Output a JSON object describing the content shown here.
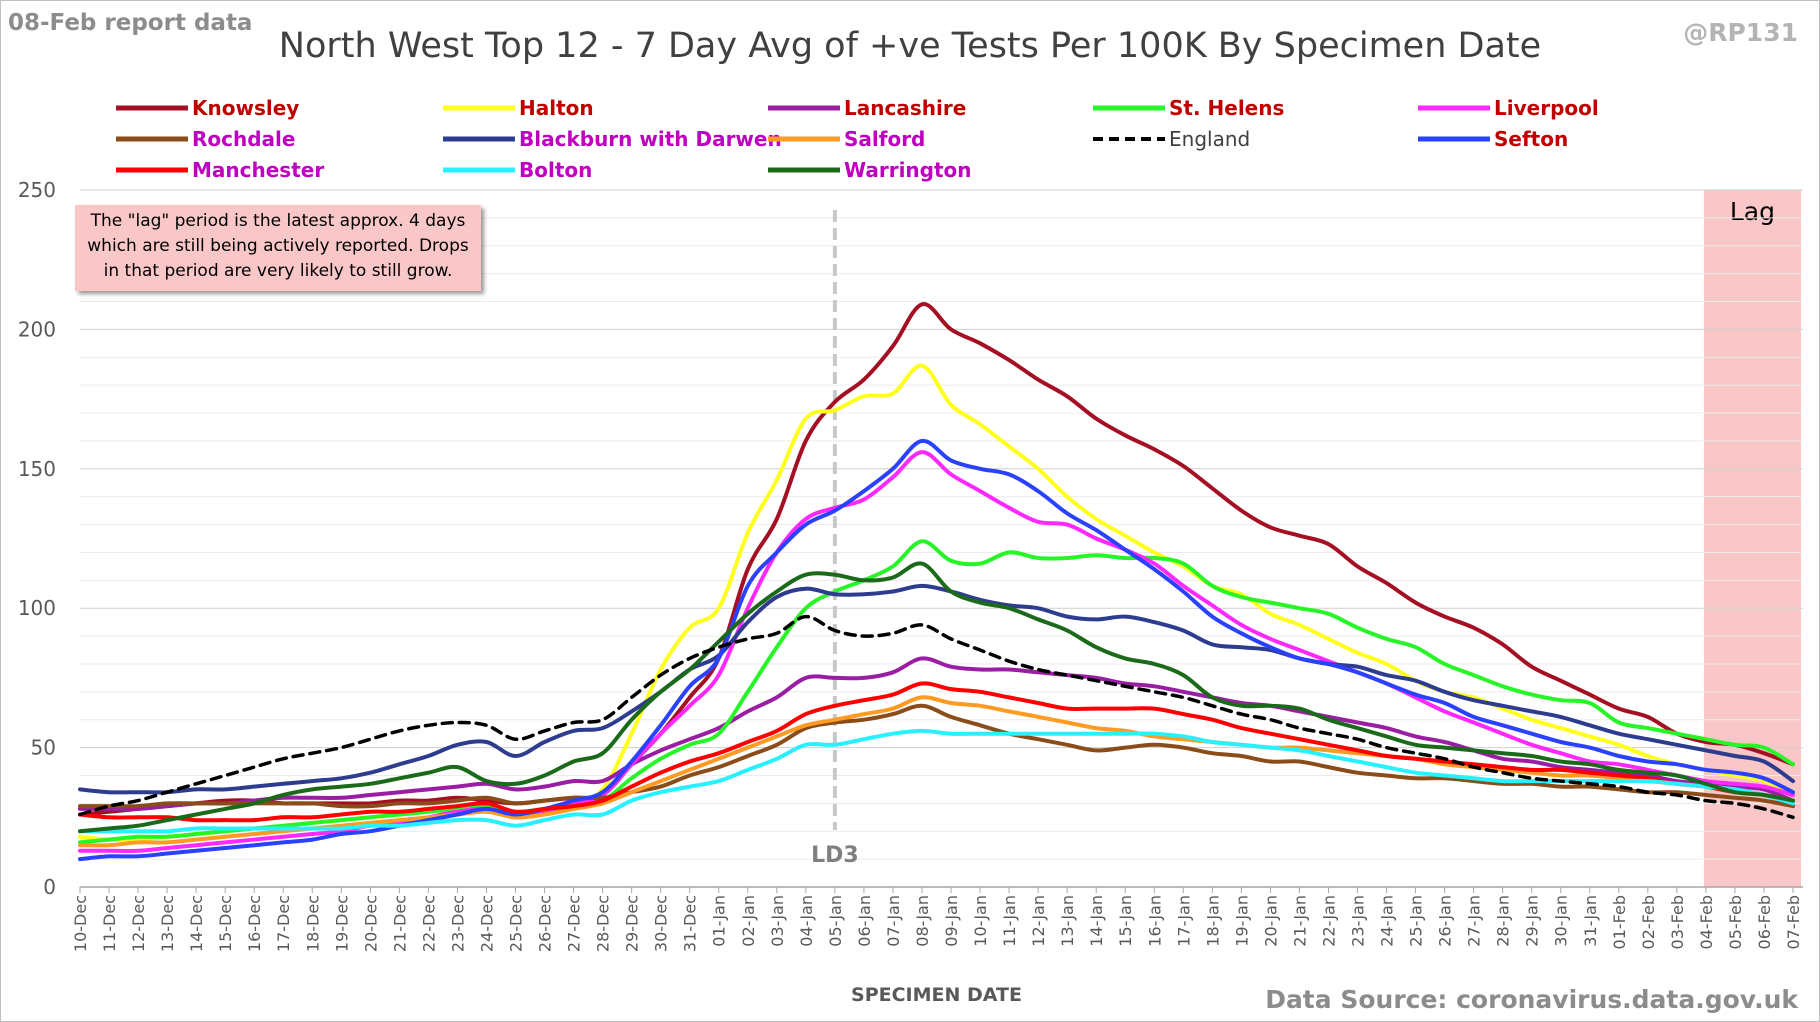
{
  "header": {
    "report_date": "08-Feb report data",
    "handle": "@RP131",
    "source": "Data Source: coronavirus.data.gov.uk"
  },
  "note": {
    "line1": "The \"lag\" period is the latest approx. 4 days",
    "line2": "which are still being actively reported.  Drops",
    "line3": "in that period are very likely to still grow."
  },
  "chart_data": {
    "type": "line",
    "title": "North West Top 12 - 7 Day Avg of +ve Tests Per 100K By Specimen Date",
    "xlabel": "SPECIMEN DATE",
    "ylabel": "",
    "ylim": [
      0,
      250
    ],
    "yticks": [
      0,
      50,
      100,
      150,
      200,
      250
    ],
    "grid": "horizontal",
    "legend": "top",
    "x": [
      "10-Dec",
      "11-Dec",
      "12-Dec",
      "13-Dec",
      "14-Dec",
      "15-Dec",
      "16-Dec",
      "17-Dec",
      "18-Dec",
      "19-Dec",
      "20-Dec",
      "21-Dec",
      "22-Dec",
      "23-Dec",
      "24-Dec",
      "25-Dec",
      "26-Dec",
      "27-Dec",
      "28-Dec",
      "29-Dec",
      "30-Dec",
      "31-Dec",
      "01-Jan",
      "02-Jan",
      "03-Jan",
      "04-Jan",
      "05-Jan",
      "06-Jan",
      "07-Jan",
      "08-Jan",
      "09-Jan",
      "10-Jan",
      "11-Jan",
      "12-Jan",
      "13-Jan",
      "14-Jan",
      "15-Jan",
      "16-Jan",
      "17-Jan",
      "18-Jan",
      "19-Jan",
      "20-Jan",
      "21-Jan",
      "22-Jan",
      "23-Jan",
      "24-Jan",
      "25-Jan",
      "26-Jan",
      "27-Jan",
      "28-Jan",
      "29-Jan",
      "30-Jan",
      "31-Jan",
      "01-Feb",
      "02-Feb",
      "03-Feb",
      "04-Feb",
      "05-Feb",
      "06-Feb",
      "07-Feb"
    ],
    "annotations": [
      {
        "text": "LD3",
        "x": "05-Jan"
      },
      {
        "text": "Lag",
        "x_from": "04-Feb",
        "x_to": "07-Feb"
      }
    ],
    "series": [
      {
        "name": "Knowsley",
        "color": "#a50f23",
        "label_color": "#c00000",
        "dashed": false,
        "values": [
          26,
          27,
          28,
          29,
          30,
          31,
          31,
          30,
          30,
          30,
          30,
          31,
          31,
          32,
          31,
          30,
          31,
          32,
          33,
          44,
          55,
          68,
          82,
          114,
          132,
          160,
          174,
          182,
          194,
          209,
          200,
          195,
          189,
          182,
          176,
          168,
          162,
          157,
          151,
          143,
          135,
          129,
          126,
          123,
          115,
          109,
          102,
          97,
          93,
          87,
          79,
          74,
          69,
          64,
          61,
          55,
          52,
          51,
          48,
          44
        ]
      },
      {
        "name": "Halton",
        "color": "#ffff1e",
        "label_color": "#c00000",
        "dashed": false,
        "values": [
          18,
          17,
          17,
          18,
          19,
          20,
          21,
          22,
          23,
          24,
          25,
          26,
          27,
          28,
          28,
          25,
          27,
          30,
          35,
          55,
          78,
          93,
          100,
          127,
          146,
          168,
          171,
          176,
          177,
          187,
          173,
          166,
          158,
          150,
          140,
          132,
          126,
          120,
          115,
          108,
          105,
          98,
          94,
          89,
          84,
          80,
          74,
          70,
          68,
          64,
          60,
          57,
          54,
          51,
          47,
          44,
          42,
          40,
          38,
          33
        ]
      },
      {
        "name": "Lancashire",
        "color": "#9a1ea3",
        "label_color": "#c00000",
        "dashed": false,
        "values": [
          28,
          28,
          28,
          29,
          30,
          30,
          31,
          32,
          32,
          32,
          33,
          34,
          35,
          36,
          37,
          35,
          36,
          38,
          38,
          44,
          49,
          53,
          57,
          63,
          68,
          75,
          75,
          75,
          77,
          82,
          79,
          78,
          78,
          77,
          76,
          75,
          73,
          72,
          70,
          68,
          66,
          65,
          63,
          61,
          59,
          57,
          54,
          52,
          49,
          46,
          45,
          43,
          42,
          41,
          40,
          38,
          37,
          36,
          35,
          31
        ]
      },
      {
        "name": "St. Helens",
        "color": "#28f528",
        "label_color": "#c00000",
        "dashed": false,
        "values": [
          16,
          17,
          18,
          18,
          19,
          20,
          21,
          22,
          23,
          24,
          25,
          26,
          27,
          28,
          29,
          27,
          28,
          30,
          31,
          39,
          46,
          51,
          55,
          70,
          86,
          100,
          106,
          110,
          115,
          124,
          117,
          116,
          120,
          118,
          118,
          119,
          118,
          118,
          116,
          108,
          104,
          102,
          100,
          98,
          93,
          89,
          86,
          80,
          76,
          72,
          69,
          67,
          66,
          59,
          57,
          55,
          53,
          51,
          50,
          44
        ]
      },
      {
        "name": "Liverpool",
        "color": "#ff28ff",
        "label_color": "#c00000",
        "dashed": false,
        "values": [
          13,
          13,
          13,
          14,
          15,
          16,
          17,
          18,
          19,
          20,
          22,
          23,
          25,
          27,
          28,
          25,
          27,
          30,
          33,
          44,
          55,
          65,
          76,
          100,
          120,
          132,
          136,
          139,
          147,
          156,
          148,
          142,
          136,
          131,
          130,
          125,
          121,
          116,
          108,
          101,
          94,
          89,
          85,
          81,
          77,
          73,
          68,
          63,
          59,
          55,
          51,
          48,
          45,
          44,
          42,
          40,
          38,
          37,
          36,
          33
        ]
      },
      {
        "name": "Rochdale",
        "color": "#8a4d1a",
        "label_color": "#c000c0",
        "dashed": false,
        "values": [
          29,
          29,
          29,
          30,
          30,
          30,
          30,
          30,
          30,
          29,
          29,
          30,
          30,
          31,
          32,
          30,
          31,
          32,
          32,
          34,
          36,
          40,
          43,
          47,
          51,
          57,
          59,
          60,
          62,
          65,
          61,
          58,
          55,
          53,
          51,
          49,
          50,
          51,
          50,
          48,
          47,
          45,
          45,
          43,
          41,
          40,
          39,
          39,
          38,
          37,
          37,
          36,
          36,
          35,
          34,
          34,
          33,
          32,
          31,
          29
        ]
      },
      {
        "name": "Blackburn with Darwen",
        "color": "#2e3c90",
        "label_color": "#c000c0",
        "dashed": false,
        "values": [
          35,
          34,
          34,
          34,
          35,
          35,
          36,
          37,
          38,
          39,
          41,
          44,
          47,
          51,
          52,
          47,
          52,
          56,
          57,
          63,
          70,
          78,
          83,
          95,
          104,
          107,
          105,
          105,
          106,
          108,
          106,
          103,
          101,
          100,
          97,
          96,
          97,
          95,
          92,
          87,
          86,
          85,
          82,
          80,
          79,
          76,
          74,
          70,
          67,
          65,
          63,
          61,
          58,
          55,
          53,
          51,
          49,
          47,
          45,
          38
        ]
      },
      {
        "name": "Salford",
        "color": "#ff9a22",
        "label_color": "#c000c0",
        "dashed": false,
        "values": [
          15,
          15,
          16,
          16,
          17,
          18,
          19,
          20,
          21,
          22,
          23,
          24,
          25,
          26,
          27,
          25,
          26,
          28,
          30,
          34,
          38,
          42,
          46,
          50,
          54,
          58,
          60,
          62,
          64,
          68,
          66,
          65,
          63,
          61,
          59,
          57,
          56,
          54,
          53,
          52,
          51,
          50,
          50,
          49,
          48,
          47,
          46,
          44,
          43,
          42,
          41,
          40,
          40,
          39,
          38,
          37,
          36,
          35,
          33,
          31
        ]
      },
      {
        "name": "England",
        "color": "#000000",
        "label_color": "#404040",
        "dashed": true,
        "values": [
          26,
          29,
          31,
          34,
          37,
          40,
          43,
          46,
          48,
          50,
          53,
          56,
          58,
          59,
          58,
          53,
          56,
          59,
          60,
          68,
          76,
          82,
          86,
          89,
          91,
          97,
          92,
          90,
          91,
          94,
          89,
          85,
          81,
          78,
          76,
          74,
          72,
          70,
          68,
          65,
          62,
          60,
          57,
          55,
          53,
          50,
          48,
          46,
          43,
          41,
          39,
          38,
          37,
          36,
          34,
          33,
          31,
          30,
          28,
          25
        ]
      },
      {
        "name": "Sefton",
        "color": "#2a42ff",
        "label_color": "#c00000",
        "dashed": false,
        "values": [
          10,
          11,
          11,
          12,
          13,
          14,
          15,
          16,
          17,
          19,
          20,
          22,
          24,
          26,
          28,
          26,
          28,
          31,
          34,
          45,
          58,
          72,
          82,
          108,
          120,
          130,
          135,
          142,
          150,
          160,
          153,
          150,
          148,
          142,
          134,
          128,
          121,
          114,
          106,
          97,
          91,
          86,
          82,
          80,
          77,
          73,
          69,
          66,
          61,
          58,
          55,
          52,
          50,
          47,
          45,
          44,
          42,
          41,
          39,
          34
        ]
      },
      {
        "name": "Manchester",
        "color": "#ff0000",
        "label_color": "#c000c0",
        "dashed": false,
        "values": [
          26,
          25,
          25,
          25,
          24,
          24,
          24,
          25,
          25,
          26,
          27,
          27,
          28,
          29,
          30,
          27,
          28,
          29,
          31,
          36,
          41,
          45,
          48,
          52,
          56,
          62,
          65,
          67,
          69,
          73,
          71,
          70,
          68,
          66,
          64,
          64,
          64,
          64,
          62,
          60,
          57,
          55,
          53,
          51,
          49,
          47,
          46,
          45,
          44,
          43,
          42,
          42,
          41,
          40,
          39,
          37,
          36,
          34,
          33,
          30
        ]
      },
      {
        "name": "Bolton",
        "color": "#28f0ff",
        "label_color": "#c000c0",
        "dashed": false,
        "values": [
          20,
          20,
          20,
          20,
          21,
          21,
          21,
          21,
          21,
          21,
          22,
          22,
          23,
          24,
          24,
          22,
          24,
          26,
          26,
          31,
          34,
          36,
          38,
          42,
          46,
          51,
          51,
          53,
          55,
          56,
          55,
          55,
          55,
          55,
          55,
          55,
          55,
          55,
          54,
          52,
          51,
          50,
          49,
          47,
          45,
          43,
          41,
          40,
          39,
          38,
          38,
          38,
          38,
          38,
          38,
          37,
          36,
          35,
          33,
          30
        ]
      },
      {
        "name": "Warrington",
        "color": "#1a6a1a",
        "label_color": "#c000c0",
        "dashed": false,
        "values": [
          20,
          21,
          22,
          24,
          26,
          28,
          30,
          33,
          35,
          36,
          37,
          39,
          41,
          43,
          38,
          37,
          40,
          45,
          48,
          60,
          70,
          78,
          88,
          98,
          106,
          112,
          112,
          110,
          111,
          116,
          106,
          102,
          100,
          96,
          92,
          86,
          82,
          80,
          76,
          68,
          65,
          65,
          64,
          60,
          57,
          54,
          51,
          50,
          49,
          48,
          47,
          45,
          44,
          42,
          41,
          40,
          37,
          34,
          33,
          31
        ]
      }
    ]
  }
}
